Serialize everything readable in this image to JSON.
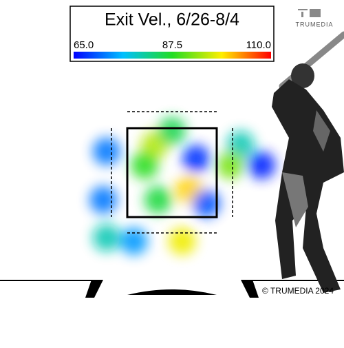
{
  "chart_data": {
    "type": "heatmap",
    "title": "Exit Vel., 6/26-8/4",
    "logo": "TRUMEDIA",
    "copyright": "© TRUMEDIA 2024",
    "xlim": [
      -2.5,
      2.5
    ],
    "ylim": [
      0,
      5
    ],
    "colorbar": {
      "lim": [
        65,
        110
      ],
      "ticks": [
        {
          "value": 65,
          "label": "65.0"
        },
        87.5,
        {
          "value": 110,
          "label": "110.0"
        }
      ]
    },
    "x": [
      -0.32,
      0.45,
      1.67,
      -1.22,
      1.28,
      0.32,
      0.64,
      -0.51,
      0,
      -1.28,
      -0.71,
      -1.22,
      0.19,
      1.09,
      -0.26
    ],
    "y": [
      3.13,
      2.82,
      2.67,
      2.98,
      3.13,
      2.12,
      1.81,
      2.67,
      3.44,
      1.89,
      0.96,
      1.04,
      0.96,
      2.67,
      1.89
    ],
    "values": [
      95,
      68,
      67,
      72,
      80,
      100,
      70,
      88,
      85,
      72,
      74,
      80,
      98,
      92,
      86
    ]
  }
}
